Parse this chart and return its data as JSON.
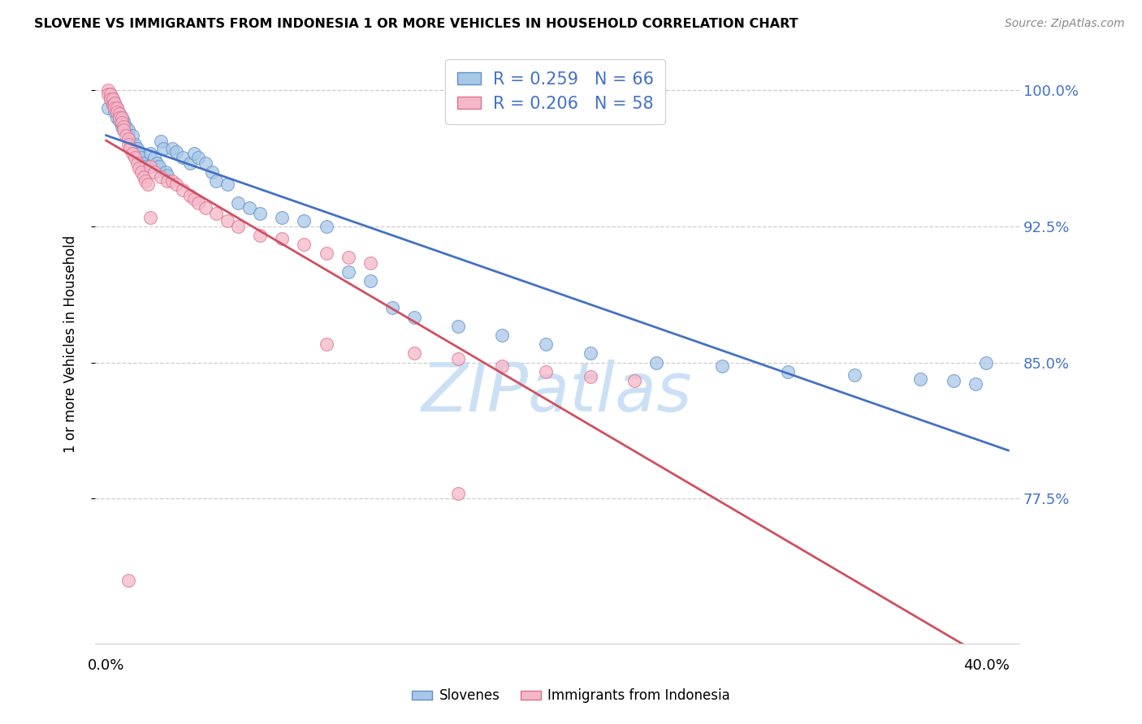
{
  "title": "SLOVENE VS IMMIGRANTS FROM INDONESIA 1 OR MORE VEHICLES IN HOUSEHOLD CORRELATION CHART",
  "source": "Source: ZipAtlas.com",
  "ylabel": "1 or more Vehicles in Household",
  "ytick_vals": [
    0.775,
    0.85,
    0.925,
    1.0
  ],
  "ytick_labels": [
    "77.5%",
    "85.0%",
    "92.5%",
    "100.0%"
  ],
  "blue_color": "#a8c8e8",
  "pink_color": "#f4b8c8",
  "blue_edge_color": "#6090c8",
  "pink_edge_color": "#e07090",
  "blue_line_color": "#4472c4",
  "pink_line_color": "#d05060",
  "legend_text_color": "#4472c4",
  "ytick_color": "#4472c4",
  "watermark_color": "#cce0f5",
  "blue_x": [
    0.001,
    0.002,
    0.002,
    0.003,
    0.003,
    0.004,
    0.004,
    0.005,
    0.005,
    0.006,
    0.006,
    0.007,
    0.007,
    0.008,
    0.008,
    0.009,
    0.01,
    0.01,
    0.011,
    0.012,
    0.013,
    0.014,
    0.015,
    0.016,
    0.017,
    0.018,
    0.02,
    0.022,
    0.023,
    0.024,
    0.025,
    0.026,
    0.027,
    0.028,
    0.03,
    0.032,
    0.035,
    0.038,
    0.04,
    0.042,
    0.045,
    0.048,
    0.05,
    0.055,
    0.06,
    0.065,
    0.07,
    0.08,
    0.09,
    0.1,
    0.11,
    0.12,
    0.13,
    0.14,
    0.16,
    0.18,
    0.2,
    0.22,
    0.25,
    0.28,
    0.31,
    0.34,
    0.37,
    0.385,
    0.395,
    0.4
  ],
  "blue_y": [
    0.99,
    0.995,
    0.998,
    0.995,
    0.992,
    0.993,
    0.988,
    0.99,
    0.985,
    0.987,
    0.983,
    0.985,
    0.98,
    0.983,
    0.978,
    0.98,
    0.975,
    0.978,
    0.972,
    0.975,
    0.97,
    0.968,
    0.965,
    0.963,
    0.96,
    0.958,
    0.965,
    0.963,
    0.96,
    0.958,
    0.972,
    0.968,
    0.955,
    0.953,
    0.968,
    0.966,
    0.963,
    0.96,
    0.965,
    0.963,
    0.96,
    0.955,
    0.95,
    0.948,
    0.938,
    0.935,
    0.932,
    0.93,
    0.928,
    0.925,
    0.9,
    0.895,
    0.88,
    0.875,
    0.87,
    0.865,
    0.86,
    0.855,
    0.85,
    0.848,
    0.845,
    0.843,
    0.841,
    0.84,
    0.838,
    0.85
  ],
  "pink_x": [
    0.001,
    0.001,
    0.002,
    0.002,
    0.003,
    0.003,
    0.004,
    0.004,
    0.005,
    0.005,
    0.006,
    0.006,
    0.007,
    0.007,
    0.008,
    0.008,
    0.009,
    0.01,
    0.01,
    0.011,
    0.012,
    0.013,
    0.014,
    0.015,
    0.016,
    0.017,
    0.018,
    0.019,
    0.02,
    0.022,
    0.025,
    0.028,
    0.03,
    0.032,
    0.035,
    0.038,
    0.04,
    0.042,
    0.045,
    0.05,
    0.055,
    0.06,
    0.07,
    0.08,
    0.09,
    0.1,
    0.11,
    0.12,
    0.14,
    0.16,
    0.18,
    0.2,
    0.22,
    0.24,
    0.02,
    0.1,
    0.16,
    0.01
  ],
  "pink_y": [
    1.0,
    0.998,
    0.998,
    0.995,
    0.995,
    0.992,
    0.993,
    0.99,
    0.99,
    0.988,
    0.987,
    0.985,
    0.985,
    0.982,
    0.98,
    0.978,
    0.975,
    0.973,
    0.97,
    0.968,
    0.965,
    0.963,
    0.96,
    0.957,
    0.955,
    0.952,
    0.95,
    0.948,
    0.958,
    0.955,
    0.952,
    0.95,
    0.95,
    0.948,
    0.945,
    0.942,
    0.94,
    0.938,
    0.935,
    0.932,
    0.928,
    0.925,
    0.92,
    0.918,
    0.915,
    0.91,
    0.908,
    0.905,
    0.855,
    0.852,
    0.848,
    0.845,
    0.842,
    0.84,
    0.93,
    0.86,
    0.778,
    0.73
  ]
}
